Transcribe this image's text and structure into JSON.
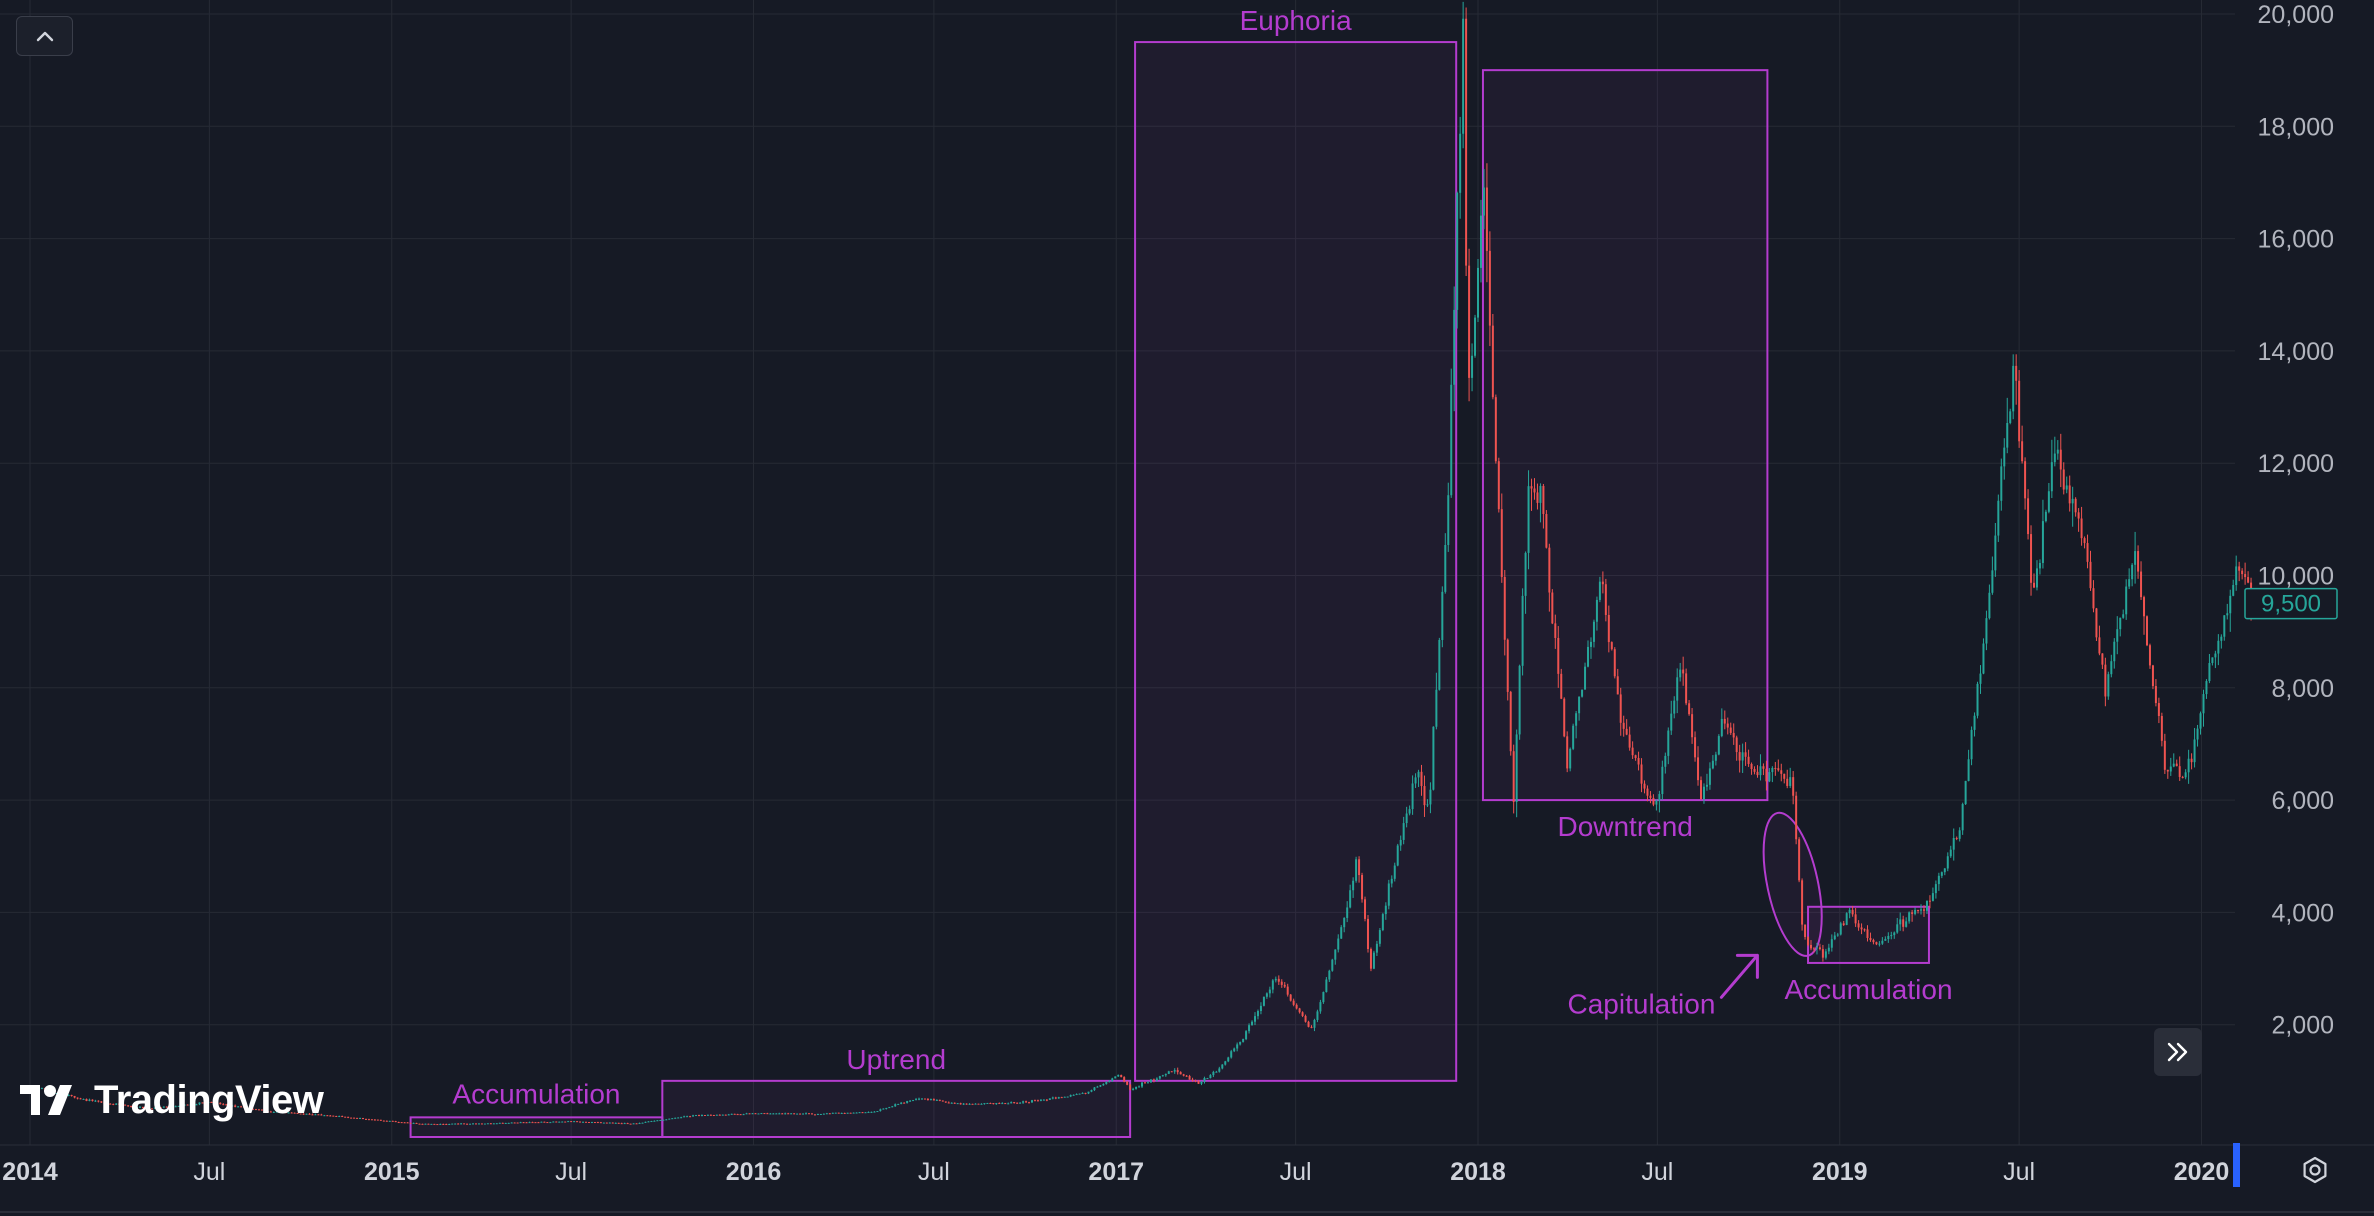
{
  "brand": {
    "name": "TradingView"
  },
  "colors": {
    "background": "#161a25",
    "grid": "#262a35",
    "up": "#26a69a",
    "down": "#ef5350",
    "annotation": "#b43ccf",
    "price_tag": "#26a69a"
  },
  "icons": {
    "collapse": "chevron-up-icon",
    "scroll": "double-chevron-right-icon",
    "settings": "gear-icon",
    "logo": "tradingview-logo-icon"
  },
  "chart_data": {
    "type": "candlestick",
    "title": "",
    "xlabel": "",
    "ylabel": "",
    "y_axis_position": "right",
    "ylim": [
      0,
      20000
    ],
    "y_ticks": [
      {
        "value": 2000,
        "label": "2,000"
      },
      {
        "value": 4000,
        "label": "4,000"
      },
      {
        "value": 6000,
        "label": "6,000"
      },
      {
        "value": 8000,
        "label": "8,000"
      },
      {
        "value": 10000,
        "label": "10,000"
      },
      {
        "value": 12000,
        "label": "12,000"
      },
      {
        "value": 14000,
        "label": "14,000"
      },
      {
        "value": 16000,
        "label": "16,000"
      },
      {
        "value": 18000,
        "label": "18,000"
      },
      {
        "value": 20000,
        "label": "20,000"
      }
    ],
    "x_range": [
      "2014-01-01",
      "2020-02-20"
    ],
    "x_ticks": [
      {
        "date": "2014-01-01",
        "label": "2014",
        "major": true
      },
      {
        "date": "2014-07-01",
        "label": "Jul",
        "major": false
      },
      {
        "date": "2015-01-01",
        "label": "2015",
        "major": true
      },
      {
        "date": "2015-07-01",
        "label": "Jul",
        "major": false
      },
      {
        "date": "2016-01-01",
        "label": "2016",
        "major": true
      },
      {
        "date": "2016-07-01",
        "label": "Jul",
        "major": false
      },
      {
        "date": "2017-01-01",
        "label": "2017",
        "major": true
      },
      {
        "date": "2017-07-01",
        "label": "Jul",
        "major": false
      },
      {
        "date": "2018-01-01",
        "label": "2018",
        "major": true
      },
      {
        "date": "2018-07-01",
        "label": "Jul",
        "major": false
      },
      {
        "date": "2019-01-01",
        "label": "2019",
        "major": true
      },
      {
        "date": "2019-07-01",
        "label": "Jul",
        "major": false
      },
      {
        "date": "2020-01-01",
        "label": "2020",
        "major": true
      }
    ],
    "current_price": {
      "value": 9500,
      "label": "9,500"
    },
    "grid": true,
    "legend": "none",
    "series": [
      {
        "kind": "close-path-approx",
        "points": [
          [
            "2014-01-01",
            900
          ],
          [
            "2014-03-01",
            650
          ],
          [
            "2014-05-01",
            500
          ],
          [
            "2014-07-01",
            620
          ],
          [
            "2014-09-01",
            450
          ],
          [
            "2014-11-01",
            380
          ],
          [
            "2015-01-01",
            280
          ],
          [
            "2015-02-01",
            230
          ],
          [
            "2015-04-01",
            240
          ],
          [
            "2015-07-01",
            280
          ],
          [
            "2015-09-01",
            235
          ],
          [
            "2015-11-01",
            380
          ],
          [
            "2016-01-01",
            420
          ],
          [
            "2016-03-01",
            410
          ],
          [
            "2016-05-01",
            450
          ],
          [
            "2016-06-15",
            700
          ],
          [
            "2016-08-01",
            580
          ],
          [
            "2016-10-01",
            620
          ],
          [
            "2016-12-01",
            780
          ],
          [
            "2017-01-04",
            1100
          ],
          [
            "2017-01-15",
            850
          ],
          [
            "2017-03-01",
            1200
          ],
          [
            "2017-03-25",
            950
          ],
          [
            "2017-04-15",
            1200
          ],
          [
            "2017-05-10",
            1800
          ],
          [
            "2017-06-12",
            2900
          ],
          [
            "2017-07-16",
            1900
          ],
          [
            "2017-08-05",
            3000
          ],
          [
            "2017-09-01",
            4900
          ],
          [
            "2017-09-15",
            3000
          ],
          [
            "2017-10-01",
            4300
          ],
          [
            "2017-11-01",
            6500
          ],
          [
            "2017-11-12",
            5800
          ],
          [
            "2017-12-01",
            11000
          ],
          [
            "2017-12-17",
            19600
          ],
          [
            "2017-12-22",
            13000
          ],
          [
            "2018-01-06",
            17100
          ],
          [
            "2018-01-15",
            13500
          ],
          [
            "2018-02-06",
            6000
          ],
          [
            "2018-02-20",
            11500
          ],
          [
            "2018-03-05",
            11500
          ],
          [
            "2018-04-01",
            6600
          ],
          [
            "2018-05-05",
            9900
          ],
          [
            "2018-05-25",
            7400
          ],
          [
            "2018-06-28",
            5800
          ],
          [
            "2018-07-25",
            8400
          ],
          [
            "2018-08-14",
            6000
          ],
          [
            "2018-09-05",
            7400
          ],
          [
            "2018-10-01",
            6600
          ],
          [
            "2018-11-14",
            6300
          ],
          [
            "2018-11-25",
            3600
          ],
          [
            "2018-12-15",
            3200
          ],
          [
            "2019-01-10",
            4000
          ],
          [
            "2019-02-08",
            3400
          ],
          [
            "2019-03-15",
            4000
          ],
          [
            "2019-04-02",
            4200
          ],
          [
            "2019-05-01",
            5400
          ],
          [
            "2019-05-25",
            8700
          ],
          [
            "2019-06-26",
            13800
          ],
          [
            "2019-07-15",
            9500
          ],
          [
            "2019-08-06",
            12300
          ],
          [
            "2019-09-05",
            10500
          ],
          [
            "2019-09-25",
            8000
          ],
          [
            "2019-10-26",
            10300
          ],
          [
            "2019-11-25",
            6600
          ],
          [
            "2019-12-18",
            6500
          ],
          [
            "2020-01-15",
            8800
          ],
          [
            "2020-02-12",
            10300
          ],
          [
            "2020-02-20",
            9500
          ]
        ]
      }
    ],
    "annotations": [
      {
        "label": "Accumulation",
        "start": "2015-01-20",
        "end": "2015-10-01",
        "top": 350,
        "bottom": 0
      },
      {
        "label": "Uptrend",
        "start": "2015-10-01",
        "end": "2017-01-15",
        "top": 1000,
        "bottom": 0
      },
      {
        "label": "Euphoria",
        "start": "2017-01-20",
        "end": "2017-12-10",
        "top": 19500,
        "bottom": 1000
      },
      {
        "label": "Downtrend",
        "start": "2018-01-06",
        "end": "2018-10-20",
        "top": 19000,
        "bottom": 6000
      },
      {
        "label": "Capitulation",
        "start": "2018-10-20",
        "end": "2018-12-10",
        "top": 5800,
        "bottom": 3200
      },
      {
        "label": "Accumulation",
        "start": "2018-11-30",
        "end": "2019-04-01",
        "top": 4100,
        "bottom": 3100
      }
    ]
  }
}
